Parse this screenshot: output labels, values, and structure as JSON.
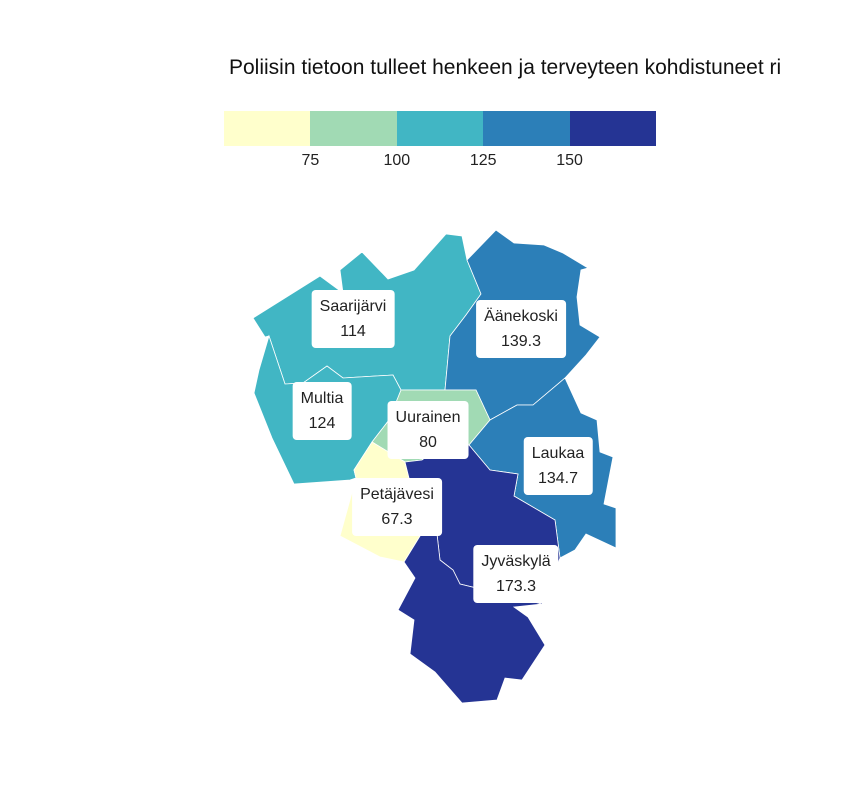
{
  "title": "Poliisin tietoon tulleet henkeen ja terveyteen kohdistuneet ri",
  "legend": {
    "colors": [
      "#ffffcc",
      "#a1dab4",
      "#41b6c4",
      "#2c7fb8",
      "#253494"
    ],
    "ticks": [
      "75",
      "100",
      "125",
      "150"
    ]
  },
  "regions": [
    {
      "name": "Saarijärvi",
      "value": "114",
      "color": "#41b6c4"
    },
    {
      "name": "Multia",
      "value": "124",
      "color": "#41b6c4"
    },
    {
      "name": "Äänekoski",
      "value": "139.3",
      "color": "#2c7fb8"
    },
    {
      "name": "Uurainen",
      "value": "80",
      "color": "#a1dab4"
    },
    {
      "name": "Laukaa",
      "value": "134.7",
      "color": "#2c7fb8"
    },
    {
      "name": "Petäjävesi",
      "value": "67.3",
      "color": "#ffffcc"
    },
    {
      "name": "Jyväskylä",
      "value": "173.3",
      "color": "#253494"
    }
  ]
}
